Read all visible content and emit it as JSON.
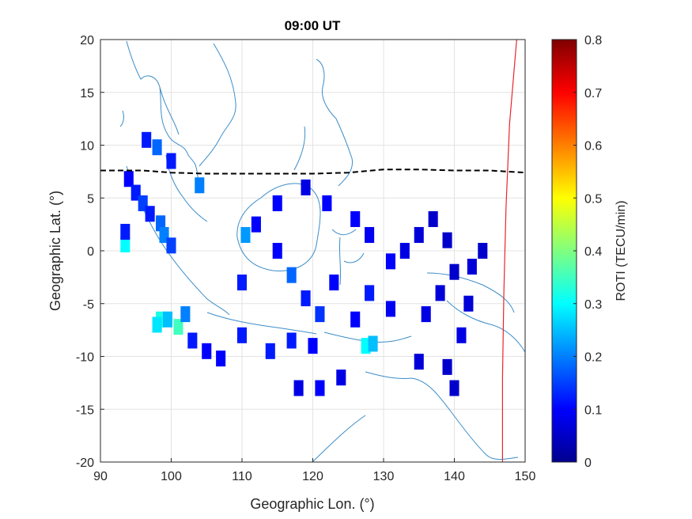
{
  "chart_data": {
    "type": "heatmap",
    "title": "09:00 UT",
    "xlabel": "Geographic Lon. (°)",
    "ylabel": "Geographic Lat. (°)",
    "xlim": [
      90,
      150
    ],
    "ylim": [
      -20,
      20
    ],
    "xticks": [
      "90",
      "100",
      "110",
      "120",
      "130",
      "140",
      "150"
    ],
    "yticks": [
      "20",
      "15",
      "10",
      "5",
      "0",
      "-5",
      "-10",
      "-15",
      "-20"
    ],
    "grid": true,
    "colorbar": {
      "label": "ROTI (TECU/min)",
      "range": [
        0,
        0.8
      ],
      "ticks": [
        "0",
        "0.1",
        "0.2",
        "0.3",
        "0.4",
        "0.5",
        "0.6",
        "0.7",
        "0.8"
      ],
      "colormap": "jet"
    },
    "overlays": {
      "magnetic_equator": {
        "style": "dashed",
        "color": "#000000",
        "points": [
          [
            90,
            7.6
          ],
          [
            96,
            7.6
          ],
          [
            100,
            7.4
          ],
          [
            105,
            7.3
          ],
          [
            110,
            7.3
          ],
          [
            115,
            7.3
          ],
          [
            120,
            7.3
          ],
          [
            125,
            7.4
          ],
          [
            130,
            7.7
          ],
          [
            135,
            7.7
          ],
          [
            140,
            7.6
          ],
          [
            145,
            7.6
          ],
          [
            150,
            7.4
          ]
        ]
      },
      "boundary_line": {
        "color": "#e8262b",
        "points": [
          [
            146.8,
            -20
          ],
          [
            146.8,
            -12
          ],
          [
            147.0,
            -4
          ],
          [
            147.3,
            4
          ],
          [
            147.8,
            12
          ],
          [
            148.8,
            20
          ]
        ]
      }
    },
    "cells": [
      {
        "lon": 93.5,
        "lat": 0.6,
        "value": 0.3
      },
      {
        "lon": 93.5,
        "lat": 1.8,
        "value": 0.12
      },
      {
        "lon": 94,
        "lat": 6.8,
        "value": 0.1
      },
      {
        "lon": 95,
        "lat": 5.5,
        "value": 0.12
      },
      {
        "lon": 96,
        "lat": 4.5,
        "value": 0.15
      },
      {
        "lon": 97,
        "lat": 3.5,
        "value": 0.12
      },
      {
        "lon": 98.5,
        "lat": 2.6,
        "value": 0.18
      },
      {
        "lon": 99,
        "lat": 1.5,
        "value": 0.2
      },
      {
        "lon": 100,
        "lat": 0.5,
        "value": 0.15
      },
      {
        "lon": 98,
        "lat": 9.8,
        "value": 0.18
      },
      {
        "lon": 96.5,
        "lat": 10.5,
        "value": 0.12
      },
      {
        "lon": 100,
        "lat": 8.5,
        "value": 0.12
      },
      {
        "lon": 104,
        "lat": 6.2,
        "value": 0.2
      },
      {
        "lon": 98.5,
        "lat": -6.5,
        "value": 0.32
      },
      {
        "lon": 99.5,
        "lat": -6.5,
        "value": 0.25
      },
      {
        "lon": 101,
        "lat": -7.2,
        "value": 0.35
      },
      {
        "lon": 102,
        "lat": -6.0,
        "value": 0.2
      },
      {
        "lon": 98,
        "lat": -7.0,
        "value": 0.28
      },
      {
        "lon": 103,
        "lat": -8.5,
        "value": 0.12
      },
      {
        "lon": 105,
        "lat": -9.5,
        "value": 0.1
      },
      {
        "lon": 107,
        "lat": -10.2,
        "value": 0.1
      },
      {
        "lon": 110,
        "lat": -8.0,
        "value": 0.12
      },
      {
        "lon": 114,
        "lat": -9.5,
        "value": 0.12
      },
      {
        "lon": 117,
        "lat": -8.5,
        "value": 0.12
      },
      {
        "lon": 120,
        "lat": -9.0,
        "value": 0.1
      },
      {
        "lon": 127.5,
        "lat": -9.0,
        "value": 0.3
      },
      {
        "lon": 128.5,
        "lat": -8.8,
        "value": 0.25
      },
      {
        "lon": 110.5,
        "lat": 1.5,
        "value": 0.22
      },
      {
        "lon": 110,
        "lat": -3.0,
        "value": 0.12
      },
      {
        "lon": 112,
        "lat": 2.5,
        "value": 0.1
      },
      {
        "lon": 115,
        "lat": 0.0,
        "value": 0.1
      },
      {
        "lon": 117,
        "lat": -2.3,
        "value": 0.18
      },
      {
        "lon": 119,
        "lat": -4.5,
        "value": 0.12
      },
      {
        "lon": 121,
        "lat": -6.0,
        "value": 0.14
      },
      {
        "lon": 123,
        "lat": -3.0,
        "value": 0.1
      },
      {
        "lon": 122,
        "lat": 4.5,
        "value": 0.1
      },
      {
        "lon": 119,
        "lat": 6.0,
        "value": 0.08
      },
      {
        "lon": 115,
        "lat": 4.5,
        "value": 0.1
      },
      {
        "lon": 126,
        "lat": 3.0,
        "value": 0.1
      },
      {
        "lon": 128,
        "lat": 1.5,
        "value": 0.09
      },
      {
        "lon": 131,
        "lat": -1.0,
        "value": 0.1
      },
      {
        "lon": 133,
        "lat": 0.0,
        "value": 0.08
      },
      {
        "lon": 131,
        "lat": -5.5,
        "value": 0.09
      },
      {
        "lon": 128,
        "lat": -4.0,
        "value": 0.12
      },
      {
        "lon": 126,
        "lat": -6.5,
        "value": 0.1
      },
      {
        "lon": 124,
        "lat": -12.0,
        "value": 0.08
      },
      {
        "lon": 121,
        "lat": -13.0,
        "value": 0.1
      },
      {
        "lon": 118,
        "lat": -13.0,
        "value": 0.08
      },
      {
        "lon": 136,
        "lat": -6.0,
        "value": 0.08
      },
      {
        "lon": 138,
        "lat": -4.0,
        "value": 0.07
      },
      {
        "lon": 140,
        "lat": -2.0,
        "value": 0.06
      },
      {
        "lon": 142,
        "lat": -5.0,
        "value": 0.07
      },
      {
        "lon": 141,
        "lat": -8.0,
        "value": 0.08
      },
      {
        "lon": 139,
        "lat": -11.0,
        "value": 0.06
      },
      {
        "lon": 135,
        "lat": -10.5,
        "value": 0.07
      },
      {
        "lon": 140,
        "lat": -13.0,
        "value": 0.06
      },
      {
        "lon": 135,
        "lat": 1.5,
        "value": 0.07
      },
      {
        "lon": 137,
        "lat": 3.0,
        "value": 0.06
      },
      {
        "lon": 139,
        "lat": 1.0,
        "value": 0.06
      },
      {
        "lon": 144,
        "lat": 0.0,
        "value": 0.06
      },
      {
        "lon": 142.5,
        "lat": -1.5,
        "value": 0.07
      }
    ]
  }
}
